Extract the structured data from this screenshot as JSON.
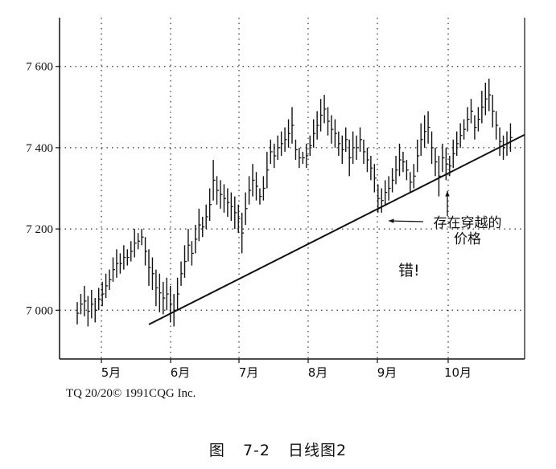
{
  "chart_data": {
    "type": "ohlc",
    "y_ticks": [
      "7 000",
      "7 200",
      "7 400",
      "7 600"
    ],
    "y_tick_values": [
      7000,
      7200,
      7400,
      7600
    ],
    "ylim": [
      6880,
      7720
    ],
    "x_labels": [
      "5月",
      "6月",
      "7月",
      "8月",
      "9月",
      "10月"
    ],
    "grid": "dotted",
    "trendline": {
      "from": {
        "bar": 20,
        "price": 6965
      },
      "to": {
        "bar": 120,
        "price": 7410
      }
    },
    "bars": [
      [
        7020,
        6965
      ],
      [
        7040,
        6990
      ],
      [
        7060,
        6985
      ],
      [
        7035,
        6960
      ],
      [
        7050,
        6980
      ],
      [
        7030,
        6970
      ],
      [
        7055,
        7000
      ],
      [
        7070,
        7010
      ],
      [
        7090,
        7030
      ],
      [
        7100,
        7050
      ],
      [
        7130,
        7070
      ],
      [
        7150,
        7080
      ],
      [
        7140,
        7090
      ],
      [
        7160,
        7100
      ],
      [
        7150,
        7110
      ],
      [
        7170,
        7120
      ],
      [
        7200,
        7130
      ],
      [
        7190,
        7150
      ],
      [
        7200,
        7160
      ],
      [
        7180,
        7110
      ],
      [
        7150,
        7060
      ],
      [
        7130,
        7050
      ],
      [
        7100,
        7010
      ],
      [
        7090,
        6995
      ],
      [
        7070,
        6990
      ],
      [
        7080,
        7000
      ],
      [
        7060,
        6970
      ],
      [
        7040,
        6960
      ],
      [
        7080,
        7000
      ],
      [
        7120,
        7060
      ],
      [
        7160,
        7080
      ],
      [
        7200,
        7120
      ],
      [
        7170,
        7110
      ],
      [
        7210,
        7140
      ],
      [
        7250,
        7170
      ],
      [
        7230,
        7180
      ],
      [
        7260,
        7200
      ],
      [
        7300,
        7220
      ],
      [
        7370,
        7270
      ],
      [
        7330,
        7260
      ],
      [
        7320,
        7250
      ],
      [
        7310,
        7240
      ],
      [
        7300,
        7230
      ],
      [
        7290,
        7220
      ],
      [
        7280,
        7200
      ],
      [
        7260,
        7190
      ],
      [
        7240,
        7140
      ],
      [
        7290,
        7210
      ],
      [
        7330,
        7260
      ],
      [
        7360,
        7280
      ],
      [
        7340,
        7270
      ],
      [
        7300,
        7260
      ],
      [
        7330,
        7270
      ],
      [
        7390,
        7300
      ],
      [
        7420,
        7360
      ],
      [
        7410,
        7350
      ],
      [
        7430,
        7370
      ],
      [
        7440,
        7380
      ],
      [
        7450,
        7390
      ],
      [
        7470,
        7400
      ],
      [
        7500,
        7410
      ],
      [
        7420,
        7370
      ],
      [
        7400,
        7350
      ],
      [
        7390,
        7360
      ],
      [
        7410,
        7350
      ],
      [
        7430,
        7380
      ],
      [
        7470,
        7400
      ],
      [
        7490,
        7420
      ],
      [
        7520,
        7440
      ],
      [
        7530,
        7460
      ],
      [
        7500,
        7430
      ],
      [
        7480,
        7410
      ],
      [
        7470,
        7400
      ],
      [
        7440,
        7380
      ],
      [
        7430,
        7360
      ],
      [
        7450,
        7390
      ],
      [
        7420,
        7330
      ],
      [
        7440,
        7360
      ],
      [
        7430,
        7370
      ],
      [
        7450,
        7390
      ],
      [
        7420,
        7360
      ],
      [
        7400,
        7340
      ],
      [
        7380,
        7320
      ],
      [
        7360,
        7290
      ],
      [
        7310,
        7240
      ],
      [
        7300,
        7240
      ],
      [
        7320,
        7260
      ],
      [
        7330,
        7270
      ],
      [
        7350,
        7290
      ],
      [
        7380,
        7310
      ],
      [
        7410,
        7330
      ],
      [
        7390,
        7340
      ],
      [
        7370,
        7320
      ],
      [
        7340,
        7290
      ],
      [
        7360,
        7300
      ],
      [
        7420,
        7340
      ],
      [
        7460,
        7380
      ],
      [
        7480,
        7400
      ],
      [
        7490,
        7410
      ],
      [
        7440,
        7360
      ],
      [
        7400,
        7330
      ],
      [
        7380,
        7280
      ],
      [
        7410,
        7340
      ],
      [
        7400,
        7320
      ],
      [
        7380,
        7330
      ],
      [
        7420,
        7350
      ],
      [
        7440,
        7380
      ],
      [
        7460,
        7400
      ],
      [
        7470,
        7420
      ],
      [
        7500,
        7440
      ],
      [
        7520,
        7460
      ],
      [
        7480,
        7420
      ],
      [
        7500,
        7440
      ],
      [
        7540,
        7460
      ],
      [
        7560,
        7480
      ],
      [
        7570,
        7490
      ],
      [
        7530,
        7450
      ],
      [
        7490,
        7420
      ],
      [
        7450,
        7380
      ],
      [
        7430,
        7370
      ],
      [
        7440,
        7380
      ],
      [
        7460,
        7390
      ]
    ]
  },
  "annotations": {
    "crossing_line1": "存在穿越的",
    "crossing_line2": "价格",
    "wrong": "错!"
  },
  "credit": "TQ 20/20© 1991CQG Inc.",
  "caption": {
    "figure": "图",
    "number": "7-2",
    "title": "日线图2"
  }
}
